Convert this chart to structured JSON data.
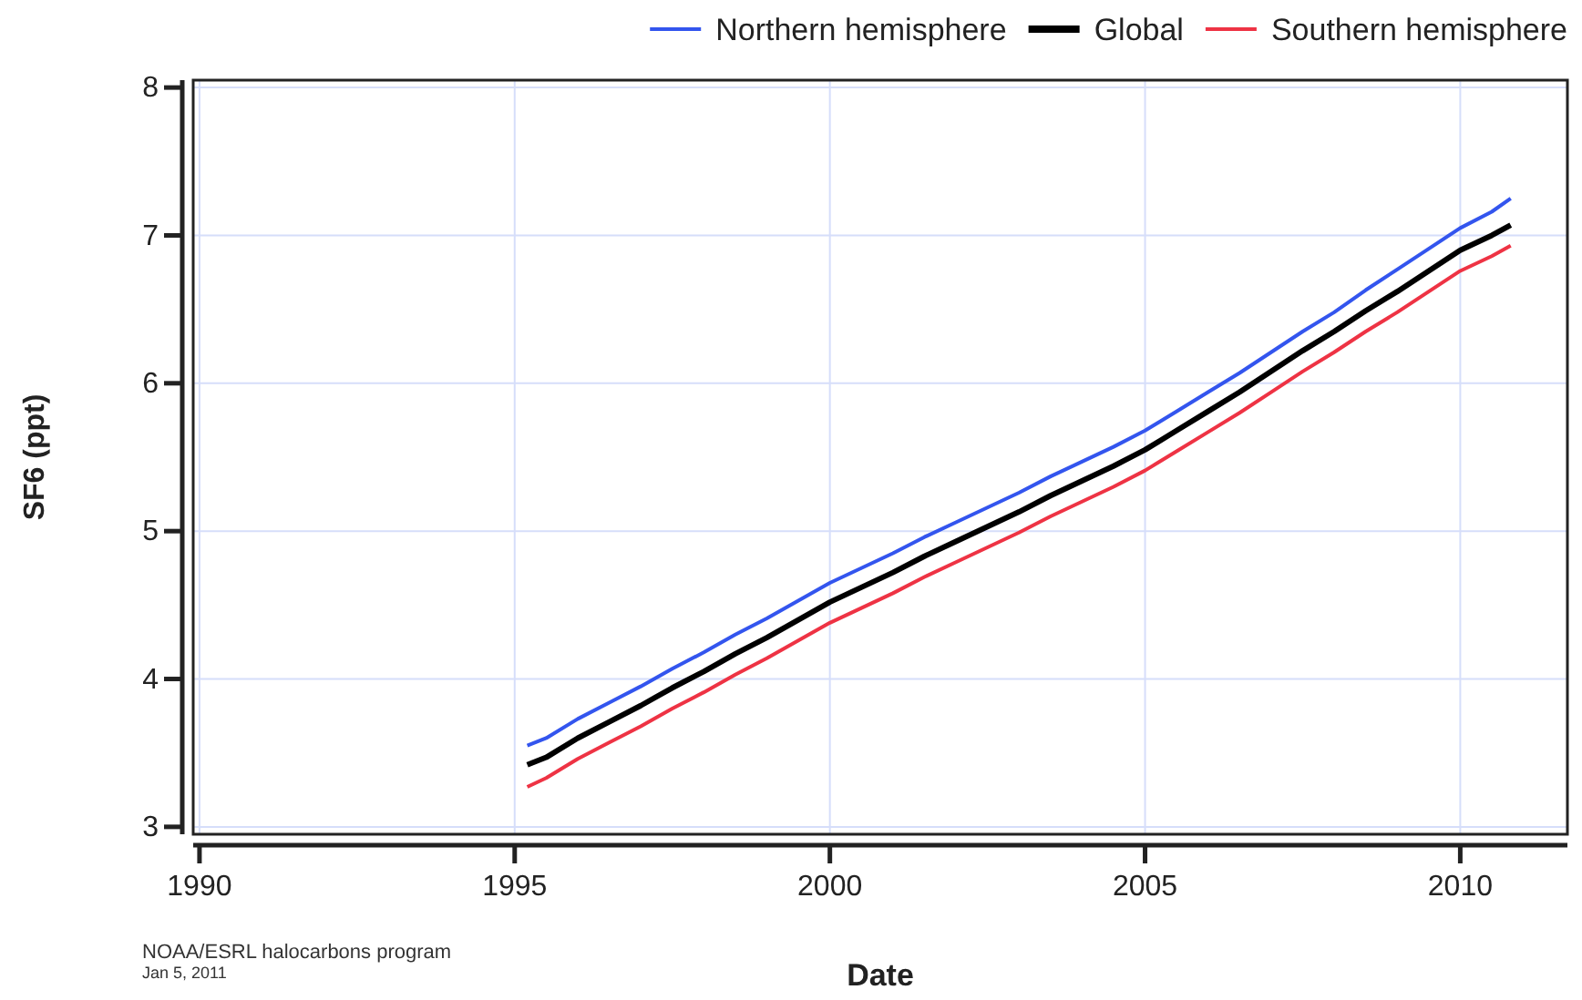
{
  "chart_data": {
    "type": "line",
    "xlabel": "Date",
    "ylabel": "SF6 (ppt)",
    "x": [
      1995.2,
      1995.5,
      1996,
      1996.5,
      1997,
      1997.5,
      1998,
      1998.5,
      1999,
      1999.5,
      2000,
      2000.5,
      2001,
      2001.5,
      2002,
      2002.5,
      2003,
      2003.5,
      2004,
      2004.5,
      2005,
      2005.5,
      2006,
      2006.5,
      2007,
      2007.5,
      2008,
      2008.5,
      2009,
      2009.5,
      2010,
      2010.5,
      2010.8
    ],
    "series": [
      {
        "name": "Northern hemisphere",
        "color": "#3355ee",
        "values": [
          3.55,
          3.6,
          3.73,
          3.84,
          3.95,
          4.07,
          4.18,
          4.3,
          4.41,
          4.53,
          4.65,
          4.75,
          4.85,
          4.96,
          5.06,
          5.16,
          5.26,
          5.37,
          5.47,
          5.57,
          5.68,
          5.81,
          5.94,
          6.07,
          6.21,
          6.35,
          6.48,
          6.63,
          6.77,
          6.91,
          7.05,
          7.16,
          7.25
        ]
      },
      {
        "name": "Global",
        "color": "#000000",
        "values": [
          3.42,
          3.47,
          3.6,
          3.71,
          3.82,
          3.94,
          4.05,
          4.17,
          4.28,
          4.4,
          4.52,
          4.62,
          4.72,
          4.83,
          4.93,
          5.03,
          5.13,
          5.24,
          5.34,
          5.44,
          5.55,
          5.68,
          5.81,
          5.94,
          6.08,
          6.22,
          6.35,
          6.49,
          6.62,
          6.76,
          6.9,
          7.0,
          7.07
        ]
      },
      {
        "name": "Southern hemisphere",
        "color": "#ee3344",
        "values": [
          3.27,
          3.33,
          3.46,
          3.57,
          3.68,
          3.8,
          3.91,
          4.03,
          4.14,
          4.26,
          4.38,
          4.48,
          4.58,
          4.69,
          4.79,
          4.89,
          4.99,
          5.1,
          5.2,
          5.3,
          5.41,
          5.54,
          5.67,
          5.8,
          5.94,
          6.08,
          6.21,
          6.35,
          6.48,
          6.62,
          6.76,
          6.86,
          6.93
        ]
      }
    ],
    "xlim": [
      1989.9,
      2011.7
    ],
    "xticks": [
      1990,
      1995,
      2000,
      2005,
      2010
    ],
    "ylim": [
      2.95,
      8.05
    ],
    "yticks": [
      3,
      4,
      5,
      6,
      7,
      8
    ],
    "grid": true,
    "legend": "top right",
    "line_style": "solid",
    "marker": "none",
    "annotations": [
      "NOAA/ESRL halocarbons program",
      "Jan 5, 2011"
    ]
  }
}
